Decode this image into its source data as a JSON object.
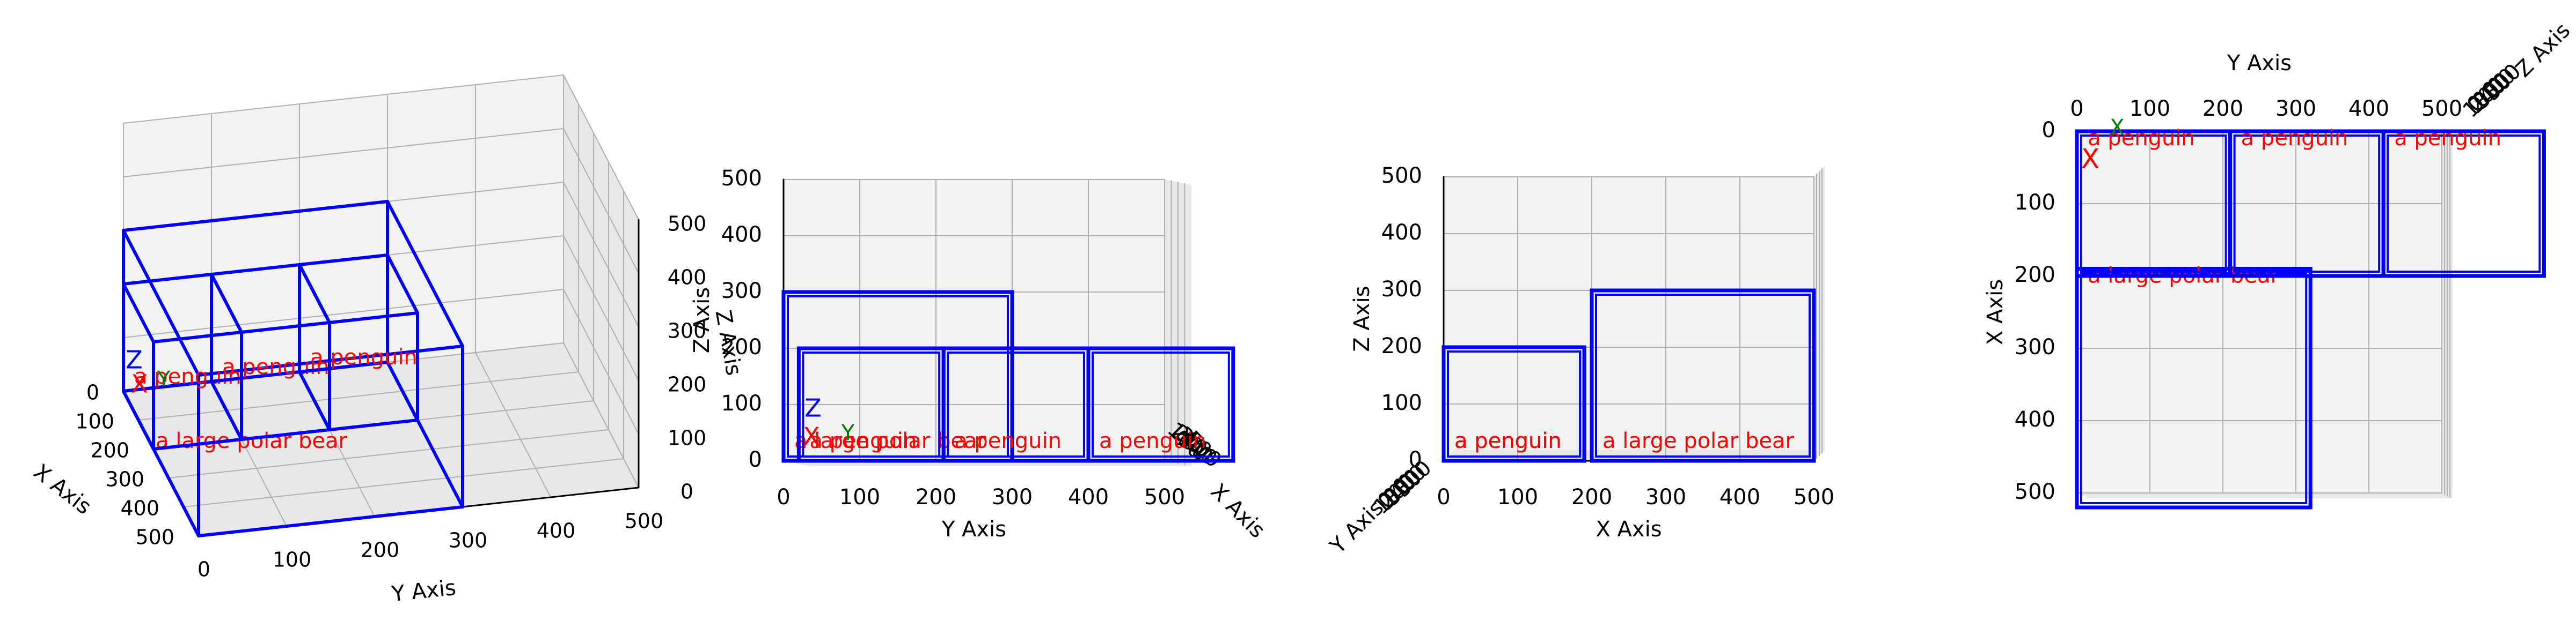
{
  "chart_data": [
    {
      "type": "3d-box",
      "view": "perspective",
      "xlabel": "X Axis",
      "ylabel": "Y Axis",
      "zlabel": "Z Axis",
      "xticks": [
        "0",
        "100",
        "200",
        "300",
        "400",
        "500"
      ],
      "yticks": [
        "0",
        "100",
        "200",
        "300",
        "400",
        "500"
      ],
      "zticks": [
        "0",
        "100",
        "200",
        "300",
        "400",
        "500"
      ],
      "xlim": [
        0,
        500
      ],
      "ylim": [
        0,
        500
      ],
      "zlim": [
        0,
        500
      ],
      "grid": true,
      "origin_markers": {
        "x": "X",
        "y": "Y",
        "z": "Z"
      },
      "boxes": [
        {
          "label": "a large polar bear",
          "x": [
            0,
            500
          ],
          "y": [
            0,
            300
          ],
          "z": [
            0,
            300
          ]
        },
        {
          "label": "a penguin",
          "x": [
            0,
            200
          ],
          "y": [
            0,
            100
          ],
          "z": [
            0,
            200
          ]
        },
        {
          "label": "a penguin",
          "x": [
            0,
            200
          ],
          "y": [
            100,
            200
          ],
          "z": [
            0,
            200
          ]
        },
        {
          "label": "a penguin",
          "x": [
            0,
            200
          ],
          "y": [
            200,
            300
          ],
          "z": [
            0,
            200
          ]
        }
      ]
    },
    {
      "type": "3d-box",
      "view": "side (Y–Z)",
      "xlabel": "Y Axis",
      "ylabel": "Z Axis",
      "depthlabel": "X Axis",
      "xticks": [
        "0",
        "100",
        "200",
        "300",
        "400",
        "500"
      ],
      "yticks": [
        "0",
        "100",
        "200",
        "300",
        "400",
        "500"
      ],
      "depthticks": [
        "0",
        "100",
        "200",
        "300",
        "400",
        "500"
      ],
      "grid": true,
      "boxes": [
        {
          "label": "a large polar bear",
          "h": [
            0,
            300
          ],
          "v": [
            0,
            300
          ]
        },
        {
          "label": "a penguin",
          "h": [
            20,
            210
          ],
          "v": [
            0,
            200
          ]
        },
        {
          "label": "a penguin",
          "h": [
            210,
            400
          ],
          "v": [
            0,
            200
          ]
        },
        {
          "label": "a penguin",
          "h": [
            400,
            590
          ],
          "v": [
            0,
            200
          ]
        }
      ]
    },
    {
      "type": "3d-box",
      "view": "front (X–Z)",
      "xlabel": "X Axis",
      "ylabel": "Z Axis",
      "depthlabel": "Y Axis",
      "xticks": [
        "0",
        "100",
        "200",
        "300",
        "400",
        "500"
      ],
      "yticks": [
        "0",
        "100",
        "200",
        "300",
        "400",
        "500"
      ],
      "depthticks": [
        "0",
        "100",
        "200",
        "300",
        "400",
        "500"
      ],
      "grid": true,
      "boxes": [
        {
          "label": "a large polar bear",
          "h": [
            200,
            500
          ],
          "v": [
            0,
            300
          ]
        },
        {
          "label": "a penguin",
          "h": [
            0,
            190
          ],
          "v": [
            0,
            200
          ]
        },
        {
          "label": "a penguin",
          "h": [
            0,
            190
          ],
          "v": [
            0,
            200
          ]
        },
        {
          "label": "a penguin",
          "h": [
            0,
            190
          ],
          "v": [
            0,
            200
          ]
        }
      ]
    },
    {
      "type": "3d-box",
      "view": "top (Y–X)",
      "xlabel": "Y Axis",
      "ylabel": "X Axis",
      "depthlabel": "Z Axis",
      "xticks": [
        "0",
        "100",
        "200",
        "300",
        "400",
        "500"
      ],
      "yticks": [
        "0",
        "100",
        "200",
        "300",
        "400",
        "500"
      ],
      "depthticks": [
        "0",
        "100",
        "200",
        "300",
        "400",
        "500"
      ],
      "grid": true,
      "boxes": [
        {
          "label": "a large polar bear",
          "h": [
            0,
            320
          ],
          "v": [
            190,
            520
          ]
        },
        {
          "label": "a penguin",
          "h": [
            0,
            210
          ],
          "v": [
            0,
            200
          ]
        },
        {
          "label": "a penguin",
          "h": [
            210,
            420
          ],
          "v": [
            0,
            200
          ]
        },
        {
          "label": "a penguin",
          "h": [
            420,
            640
          ],
          "v": [
            0,
            200
          ]
        }
      ]
    }
  ]
}
